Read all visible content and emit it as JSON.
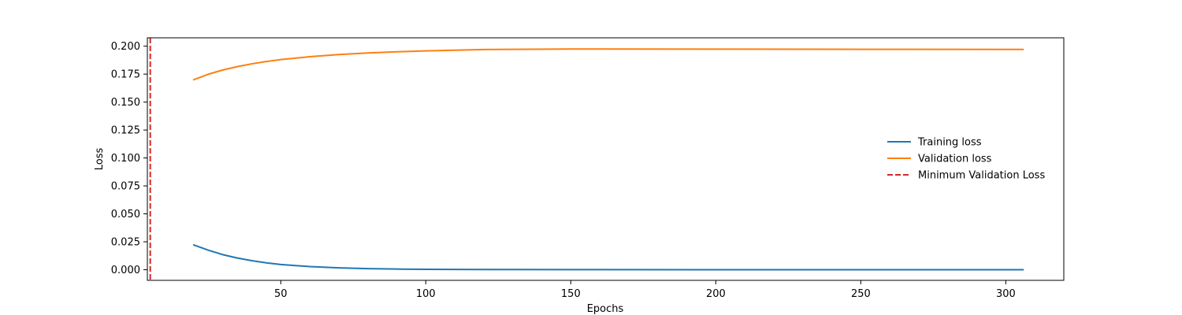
{
  "chart_data": {
    "type": "line",
    "title": "",
    "xlabel": "Epochs",
    "ylabel": "Loss",
    "xlim": [
      4,
      320
    ],
    "ylim": [
      -0.0095,
      0.2075
    ],
    "xticks": [
      50,
      100,
      150,
      200,
      250,
      300
    ],
    "yticks": [
      "0.000",
      "0.025",
      "0.050",
      "0.075",
      "0.100",
      "0.125",
      "0.150",
      "0.175",
      "0.200"
    ],
    "grid": false,
    "legend_position": "center-right",
    "series": [
      {
        "name": "Training loss",
        "color": "#1f77b4",
        "style": "solid",
        "x": [
          20,
          25,
          30,
          35,
          40,
          45,
          50,
          60,
          70,
          80,
          90,
          100,
          120,
          150,
          200,
          250,
          306
        ],
        "y": [
          0.0222,
          0.0175,
          0.0135,
          0.0105,
          0.0081,
          0.0062,
          0.0047,
          0.0028,
          0.0017,
          0.001,
          0.0006,
          0.0004,
          0.0002,
          0.0001,
          5e-05,
          3e-05,
          2e-05
        ]
      },
      {
        "name": "Validation loss",
        "color": "#ff7f0e",
        "style": "solid",
        "x": [
          20,
          25,
          30,
          35,
          40,
          45,
          50,
          60,
          70,
          80,
          90,
          100,
          120,
          150,
          200,
          250,
          306
        ],
        "y": [
          0.17,
          0.1749,
          0.1787,
          0.1817,
          0.1842,
          0.1863,
          0.188,
          0.1906,
          0.1925,
          0.1939,
          0.195,
          0.1958,
          0.197,
          0.1975,
          0.1974,
          0.1972,
          0.1971
        ]
      }
    ],
    "vlines": [
      {
        "name": "Minimum Validation Loss",
        "x": 5,
        "color": "#d62728",
        "style": "dashed"
      }
    ]
  }
}
